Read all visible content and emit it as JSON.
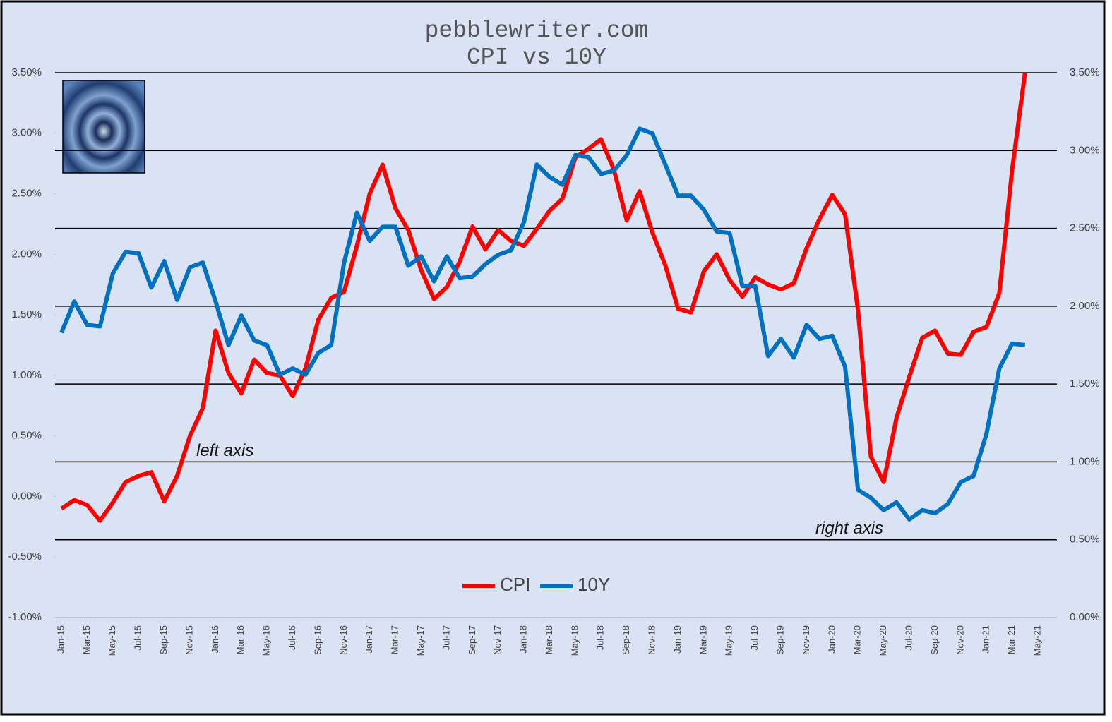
{
  "chart_data": {
    "type": "line",
    "title": "pebblewriter.com",
    "subtitle": "CPI vs 10Y",
    "annotations": [
      "left axis",
      "right axis"
    ],
    "categories": [
      "Jan-15",
      null,
      "Mar-15",
      null,
      "May-15",
      null,
      "Jul-15",
      null,
      "Sep-15",
      null,
      "Nov-15",
      null,
      "Jan-16",
      null,
      "Mar-16",
      null,
      "May-16",
      null,
      "Jul-16",
      null,
      "Sep-16",
      null,
      "Nov-16",
      null,
      "Jan-17",
      null,
      "Mar-17",
      null,
      "May-17",
      null,
      "Jul-17",
      null,
      "Sep-17",
      null,
      "Nov-17",
      null,
      "Jan-18",
      null,
      "Mar-18",
      null,
      "May-18",
      null,
      "Jul-18",
      null,
      "Sep-18",
      null,
      "Nov-18",
      null,
      "Jan-19",
      null,
      "Mar-19",
      null,
      "May-19",
      null,
      "Jul-19",
      null,
      "Sep-19",
      null,
      "Nov-19",
      null,
      "Jan-20",
      null,
      "Mar-20",
      null,
      "May-20",
      null,
      "Jul-20",
      null,
      "Sep-20",
      null,
      "Nov-20",
      null,
      "Jan-21",
      null,
      "Mar-21",
      null,
      "May-21"
    ],
    "series": [
      {
        "name": "CPI",
        "color": "#ff0000",
        "axis": "y",
        "values": [
          -0.1,
          -0.03,
          -0.07,
          -0.2,
          -0.05,
          0.12,
          0.17,
          0.2,
          -0.04,
          0.17,
          0.5,
          0.73,
          1.37,
          1.02,
          0.85,
          1.13,
          1.02,
          1.0,
          0.83,
          1.06,
          1.46,
          1.64,
          1.69,
          2.07,
          2.5,
          2.74,
          2.38,
          2.2,
          1.87,
          1.63,
          1.73,
          1.94,
          2.23,
          2.04,
          2.2,
          2.11,
          2.07,
          2.21,
          2.36,
          2.46,
          2.8,
          2.87,
          2.95,
          2.7,
          2.28,
          2.52,
          2.18,
          1.91,
          1.55,
          1.52,
          1.86,
          2.0,
          1.79,
          1.65,
          1.81,
          1.75,
          1.71,
          1.76,
          2.05,
          2.29,
          2.49,
          2.33,
          1.54,
          0.33,
          0.12,
          0.65,
          0.99,
          1.31,
          1.37,
          1.18,
          1.17,
          1.36,
          1.4,
          1.68,
          2.7,
          3.5,
          null
        ]
      },
      {
        "name": "10Y",
        "color": "#0070c0",
        "axis": "y2",
        "values": [
          1.83,
          2.03,
          1.88,
          1.87,
          2.21,
          2.35,
          2.34,
          2.12,
          2.29,
          2.04,
          2.25,
          2.28,
          2.03,
          1.75,
          1.94,
          1.78,
          1.75,
          1.56,
          1.6,
          1.56,
          1.7,
          1.75,
          2.28,
          2.6,
          2.42,
          2.51,
          2.51,
          2.26,
          2.32,
          2.16,
          2.32,
          2.18,
          2.19,
          2.27,
          2.33,
          2.36,
          2.54,
          2.91,
          2.83,
          2.78,
          2.97,
          2.96,
          2.85,
          2.87,
          2.97,
          3.14,
          3.11,
          2.91,
          2.71,
          2.71,
          2.62,
          2.48,
          2.47,
          2.13,
          2.13,
          1.68,
          1.79,
          1.67,
          1.88,
          1.79,
          1.81,
          1.61,
          0.82,
          0.77,
          0.69,
          0.74,
          0.63,
          0.69,
          0.67,
          0.73,
          0.87,
          0.91,
          1.18,
          1.6,
          1.76,
          1.75,
          null
        ]
      }
    ],
    "ylim": [
      -1,
      3.5
    ],
    "yticks": [
      {
        "value": -1,
        "label": "-1.00%"
      },
      {
        "value": -0.5,
        "label": "-0.50%"
      },
      {
        "value": 0,
        "label": "0.00%"
      },
      {
        "value": 0.5,
        "label": "0.50%"
      },
      {
        "value": 1,
        "label": "1.00%"
      },
      {
        "value": 1.5,
        "label": "1.50%"
      },
      {
        "value": 2,
        "label": "2.00%"
      },
      {
        "value": 2.5,
        "label": "2.50%"
      },
      {
        "value": 3,
        "label": "3.00%"
      },
      {
        "value": 3.5,
        "label": "3.50%"
      }
    ],
    "y2lim": [
      0,
      3.5
    ],
    "y2ticks": [
      {
        "value": 0,
        "label": "0.00%"
      },
      {
        "value": 0.5,
        "label": "0.50%"
      },
      {
        "value": 1,
        "label": "1.00%"
      },
      {
        "value": 1.5,
        "label": "1.50%"
      },
      {
        "value": 2,
        "label": "2.00%"
      },
      {
        "value": 2.5,
        "label": "2.50%"
      },
      {
        "value": 3,
        "label": "3.00%"
      },
      {
        "value": 3.5,
        "label": "3.50%"
      }
    ],
    "grid": true,
    "legend": "lower center"
  }
}
